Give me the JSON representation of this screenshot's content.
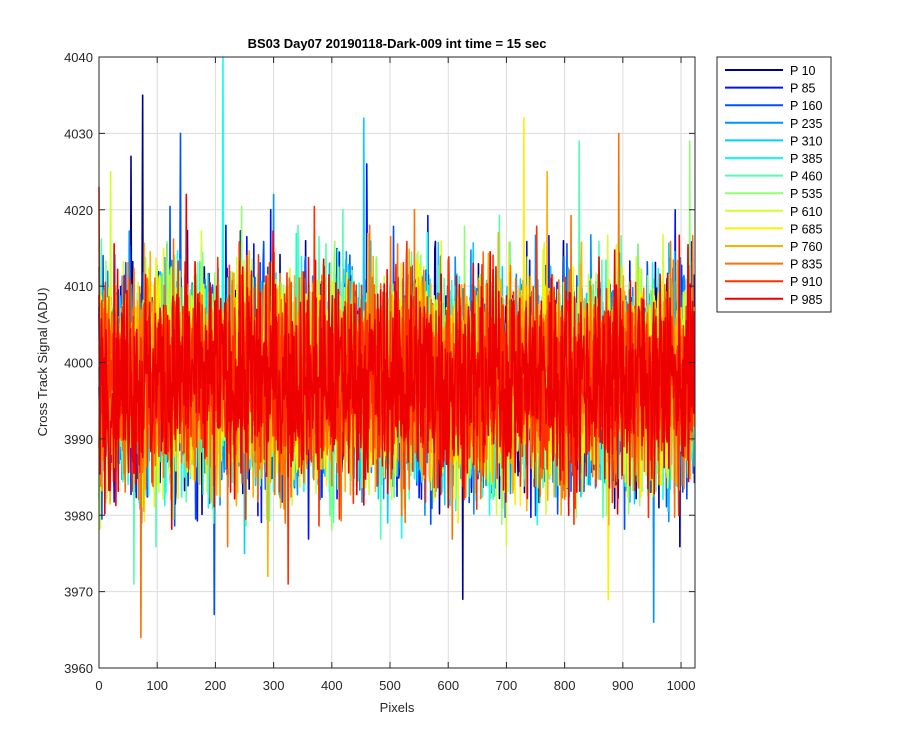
{
  "chart_data": {
    "type": "line",
    "title": "BS03 Day07 20190118-Dark-009 int time = 15 sec",
    "xlabel": "Pixels",
    "ylabel": "Cross Track Signal (ADU)",
    "xlim": [
      0,
      1024
    ],
    "ylim": [
      3960,
      4040
    ],
    "x_ticks": [
      0,
      100,
      200,
      300,
      400,
      500,
      600,
      700,
      800,
      900,
      1000
    ],
    "y_ticks": [
      3960,
      3970,
      3980,
      3990,
      4000,
      4010,
      4020,
      4030,
      4040
    ],
    "x_tick_labels": [
      "0",
      "100",
      "200",
      "300",
      "400",
      "500",
      "600",
      "700",
      "800",
      "900",
      "1000"
    ],
    "y_tick_labels": [
      "3960",
      "3970",
      "3980",
      "3990",
      "4000",
      "4010",
      "4020",
      "4030",
      "4040"
    ],
    "grid": true,
    "legend_position": "outside-top-right",
    "n_points": 1024,
    "series": [
      {
        "name": "P 10",
        "color": "#00008F",
        "mean": 3998,
        "noise": 7,
        "spikes": [
          [
            75,
            4035
          ],
          [
            55,
            4027
          ],
          [
            625,
            3969
          ]
        ]
      },
      {
        "name": "P 85",
        "color": "#0010FF",
        "mean": 3998,
        "noise": 7,
        "spikes": [
          [
            460,
            4026
          ],
          [
            990,
            4020
          ]
        ]
      },
      {
        "name": "P 160",
        "color": "#0050FF",
        "mean": 3998,
        "noise": 7,
        "spikes": [
          [
            198,
            3967
          ],
          [
            140,
            4030
          ]
        ]
      },
      {
        "name": "P 235",
        "color": "#0090FF",
        "mean": 3998,
        "noise": 7,
        "spikes": [
          [
            953,
            3966
          ],
          [
            300,
            4022
          ]
        ]
      },
      {
        "name": "P 310",
        "color": "#00CFFF",
        "mean": 3998,
        "noise": 7,
        "spikes": [
          [
            455,
            4032
          ],
          [
            250,
            3975
          ]
        ]
      },
      {
        "name": "P 385",
        "color": "#10FFEF",
        "mean": 3998,
        "noise": 7,
        "spikes": [
          [
            213,
            4040
          ],
          [
            520,
            3977
          ]
        ]
      },
      {
        "name": "P 460",
        "color": "#50FFAF",
        "mean": 3998,
        "noise": 7,
        "spikes": [
          [
            825,
            4029
          ],
          [
            60,
            3971
          ]
        ]
      },
      {
        "name": "P 535",
        "color": "#8FFF70",
        "mean": 3998,
        "noise": 7,
        "spikes": [
          [
            1015,
            4029
          ],
          [
            400,
            3978
          ]
        ]
      },
      {
        "name": "P 610",
        "color": "#CFFF30",
        "mean": 3998,
        "noise": 7,
        "spikes": [
          [
            20,
            4025
          ],
          [
            700,
            3976
          ]
        ]
      },
      {
        "name": "P 685",
        "color": "#FFEF00",
        "mean": 3998,
        "noise": 7,
        "spikes": [
          [
            730,
            4032
          ],
          [
            875,
            3969
          ]
        ]
      },
      {
        "name": "P 760",
        "color": "#FFAF00",
        "mean": 3998,
        "noise": 7,
        "spikes": [
          [
            770,
            4025
          ],
          [
            290,
            3972
          ]
        ]
      },
      {
        "name": "P 835",
        "color": "#FF7000",
        "mean": 3998,
        "noise": 7,
        "spikes": [
          [
            72,
            3964
          ],
          [
            893,
            4030
          ]
        ]
      },
      {
        "name": "P 910",
        "color": "#FF3000",
        "mean": 3998,
        "noise": 7,
        "spikes": [
          [
            325,
            3971
          ],
          [
            0,
            4023
          ]
        ]
      },
      {
        "name": "P 985",
        "color": "#EF0000",
        "mean": 3998,
        "noise": 7,
        "spikes": [
          [
            150,
            4022
          ],
          [
            600,
            3981
          ]
        ]
      }
    ]
  }
}
